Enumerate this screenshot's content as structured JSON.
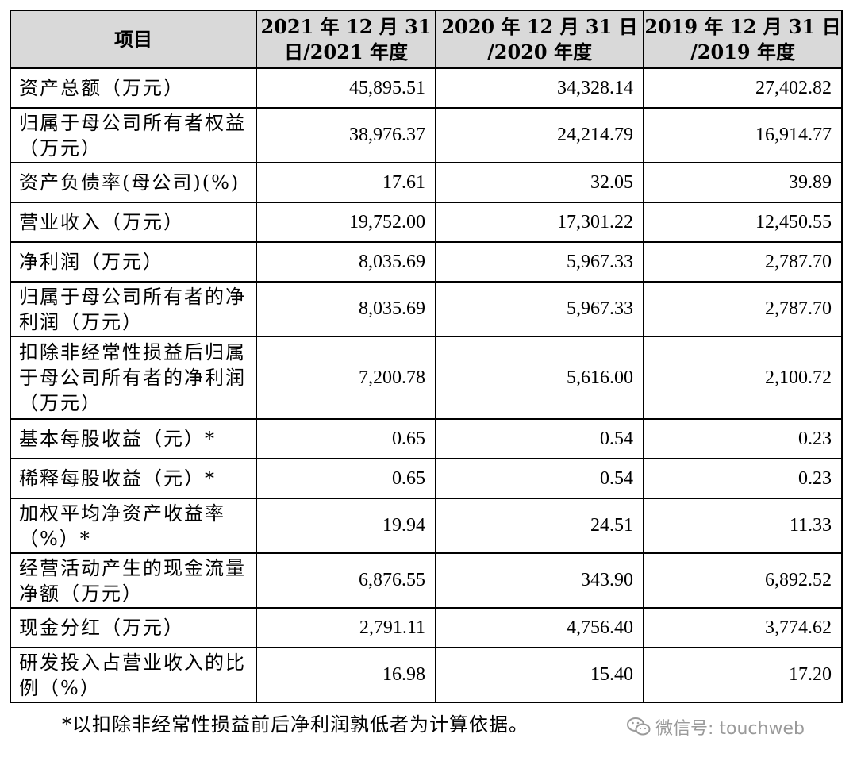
{
  "table": {
    "headers": {
      "item": "项目",
      "col1_line1": "2021 年 12 月 31",
      "col1_line2": "日/2021 年度",
      "col2_line1": "2020 年 12 月 31 日",
      "col2_line2": "/2020 年度",
      "col3_line1": "2019 年 12 月 31 日",
      "col3_line2": "/2019 年度"
    },
    "rows": [
      {
        "label": "资产总额（万元）",
        "v2021": "45,895.51",
        "v2020": "34,328.14",
        "v2019": "27,402.82"
      },
      {
        "label": "归属于母公司所有者权益（万元）",
        "v2021": "38,976.37",
        "v2020": "24,214.79",
        "v2019": "16,914.77"
      },
      {
        "label": "资产负债率(母公司)(%)",
        "v2021": "17.61",
        "v2020": "32.05",
        "v2019": "39.89"
      },
      {
        "label": "营业收入（万元）",
        "v2021": "19,752.00",
        "v2020": "17,301.22",
        "v2019": "12,450.55"
      },
      {
        "label": "净利润（万元）",
        "v2021": "8,035.69",
        "v2020": "5,967.33",
        "v2019": "2,787.70"
      },
      {
        "label": "归属于母公司所有者的净利润（万元）",
        "v2021": "8,035.69",
        "v2020": "5,967.33",
        "v2019": "2,787.70"
      },
      {
        "label": "扣除非经常性损益后归属于母公司所有者的净利润（万元）",
        "v2021": "7,200.78",
        "v2020": "5,616.00",
        "v2019": "2,100.72"
      },
      {
        "label": "基本每股收益（元）*",
        "v2021": "0.65",
        "v2020": "0.54",
        "v2019": "0.23"
      },
      {
        "label": "稀释每股收益（元）*",
        "v2021": "0.65",
        "v2020": "0.54",
        "v2019": "0.23"
      },
      {
        "label": "加权平均净资产收益率（%）*",
        "v2021": "19.94",
        "v2020": "24.51",
        "v2019": "11.33"
      },
      {
        "label": "经营活动产生的现金流量净额（万元）",
        "v2021": "6,876.55",
        "v2020": "343.90",
        "v2019": "6,892.52"
      },
      {
        "label": "现金分红（万元）",
        "v2021": "2,791.11",
        "v2020": "4,756.40",
        "v2019": "3,774.62"
      },
      {
        "label": "研发投入占营业收入的比例（%）",
        "v2021": "16.98",
        "v2020": "15.40",
        "v2019": "17.20"
      }
    ]
  },
  "footnote": "*以扣除非经常性损益前后净利润孰低者为计算依据。",
  "watermark": {
    "text": "微信号: touchweb",
    "icon": "wechat-icon",
    "color": "#9a9a9a"
  },
  "colors": {
    "header_bg": "#d9d9d9",
    "border": "#000000"
  }
}
